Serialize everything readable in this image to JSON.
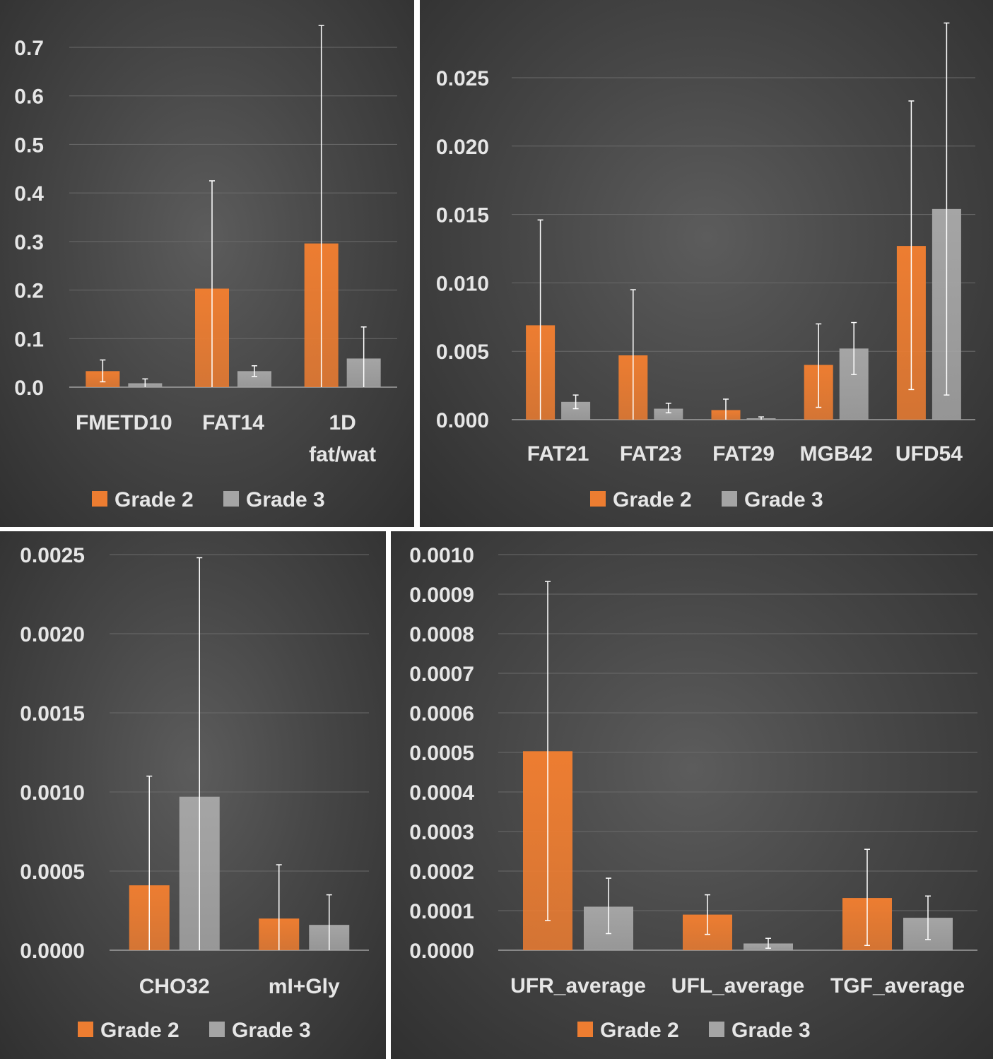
{
  "colors": {
    "grade2": "#ed7d31",
    "grade3": "#a5a5a5",
    "grid": "#6a6a6a",
    "axis": "#a0a0a0",
    "errorbar": "#ffffff"
  },
  "chart_data": [
    {
      "type": "bar",
      "title": "",
      "categories": [
        [
          "FMETD10"
        ],
        [
          "FAT14"
        ],
        [
          "1D",
          "fat/wat"
        ]
      ],
      "series": [
        {
          "name": "Grade 2",
          "values": [
            0.033,
            0.203,
            0.296
          ],
          "error_low": [
            0.011,
            0.0,
            0.0
          ],
          "error_high": [
            0.056,
            0.425,
            0.745
          ]
        },
        {
          "name": "Grade 3",
          "values": [
            0.008,
            0.033,
            0.059
          ],
          "error_low": [
            0.0,
            0.022,
            0.0
          ],
          "error_high": [
            0.017,
            0.044,
            0.124
          ]
        }
      ],
      "ylim": [
        0,
        0.7
      ],
      "yticks": [
        "0.0",
        "0.1",
        "0.2",
        "0.3",
        "0.4",
        "0.5",
        "0.6",
        "0.7"
      ],
      "xlabel": "",
      "ylabel": "",
      "legend": "bottom",
      "grid": true
    },
    {
      "type": "bar",
      "title": "",
      "categories": [
        [
          "FAT21"
        ],
        [
          "FAT23"
        ],
        [
          "FAT29"
        ],
        [
          "MGB42"
        ],
        [
          "UFD54"
        ]
      ],
      "series": [
        {
          "name": "Grade 2",
          "values": [
            0.0069,
            0.0047,
            0.0007,
            0.004,
            0.0127
          ],
          "error_low": [
            0.0,
            0.0,
            0.0,
            0.0009,
            0.0022
          ],
          "error_high": [
            0.0146,
            0.0095,
            0.0015,
            0.007,
            0.0233
          ]
        },
        {
          "name": "Grade 3",
          "values": [
            0.0013,
            0.0008,
            0.0001,
            0.0052,
            0.0154
          ],
          "error_low": [
            0.0008,
            0.0005,
            0.0,
            0.0033,
            0.0018
          ],
          "error_high": [
            0.0018,
            0.0012,
            0.0002,
            0.0071,
            0.029
          ]
        }
      ],
      "ylim": [
        0,
        0.025
      ],
      "yticks": [
        "0.000",
        "0.005",
        "0.010",
        "0.015",
        "0.020",
        "0.025"
      ],
      "xlabel": "",
      "ylabel": "",
      "legend": "bottom",
      "grid": true
    },
    {
      "type": "bar",
      "title": "",
      "categories": [
        [
          "CHO32"
        ],
        [
          "mI+Gly"
        ]
      ],
      "series": [
        {
          "name": "Grade 2",
          "values": [
            0.00041,
            0.0002
          ],
          "error_low": [
            0.0,
            0.0
          ],
          "error_high": [
            0.0011,
            0.00054
          ]
        },
        {
          "name": "Grade 3",
          "values": [
            0.00097,
            0.00016
          ],
          "error_low": [
            0.0,
            0.0
          ],
          "error_high": [
            0.00248,
            0.00035
          ]
        }
      ],
      "ylim": [
        0,
        0.0025
      ],
      "yticks": [
        "0.0000",
        "0.0005",
        "0.0010",
        "0.0015",
        "0.0020",
        "0.0025"
      ],
      "xlabel": "",
      "ylabel": "",
      "legend": "bottom",
      "grid": true
    },
    {
      "type": "bar",
      "title": "",
      "categories": [
        [
          "UFR_average"
        ],
        [
          "UFL_average"
        ],
        [
          "TGF_average"
        ]
      ],
      "series": [
        {
          "name": "Grade 2",
          "values": [
            0.000503,
            9e-05,
            0.000132
          ],
          "error_low": [
            7.5e-05,
            4e-05,
            1.2e-05
          ],
          "error_high": [
            0.000932,
            0.00014,
            0.000255
          ]
        },
        {
          "name": "Grade 3",
          "values": [
            0.00011,
            1.7e-05,
            8.2e-05
          ],
          "error_low": [
            4.2e-05,
            5e-06,
            2.7e-05
          ],
          "error_high": [
            0.000182,
            3e-05,
            0.000137
          ]
        }
      ],
      "ylim": [
        0,
        0.001
      ],
      "yticks": [
        "0.0000",
        "0.0001",
        "0.0002",
        "0.0003",
        "0.0004",
        "0.0005",
        "0.0006",
        "0.0007",
        "0.0008",
        "0.0009",
        "0.0010"
      ],
      "xlabel": "",
      "ylabel": "",
      "legend": "bottom",
      "grid": true
    }
  ]
}
